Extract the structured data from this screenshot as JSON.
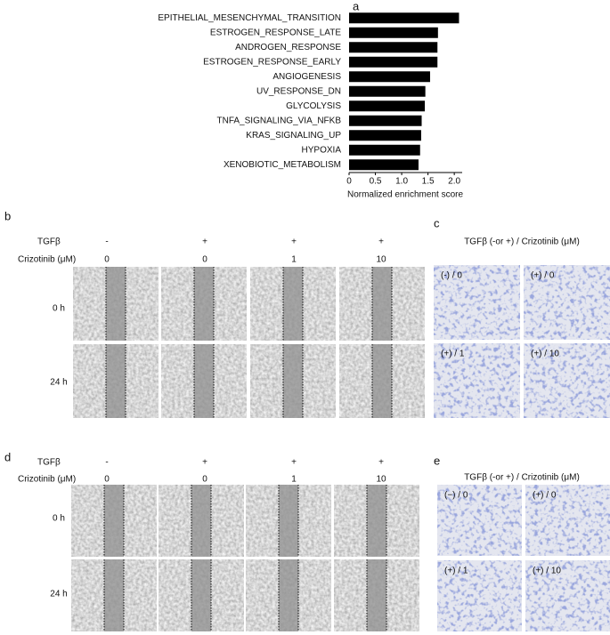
{
  "chart_data": {
    "type": "bar",
    "orientation": "horizontal",
    "categories": [
      "EPITHELIAL_MESENCHYMAL_TRANSITION",
      "ESTROGEN_RESPONSE_LATE",
      "ANDROGEN_RESPONSE",
      "ESTROGEN_RESPONSE_EARLY",
      "ANGIOGENESIS",
      "UV_RESPONSE_DN",
      "GLYCOLYSIS",
      "TNFA_SIGNALING_VIA_NFKB",
      "KRAS_SIGNALING_UP",
      "HYPOXIA",
      "XENOBIOTIC_METABOLISM"
    ],
    "values": [
      2.09,
      1.69,
      1.68,
      1.68,
      1.54,
      1.45,
      1.44,
      1.38,
      1.37,
      1.35,
      1.32
    ],
    "color": "#000000",
    "x_label": "Normalized enrichment score",
    "xlim": [
      0,
      2.15
    ],
    "xticks": [
      0,
      0.5,
      {
        "value": 1,
        "label": "1.0"
      },
      1.5,
      {
        "value": 2,
        "label": "2.0"
      }
    ]
  },
  "panel_labels": [
    "a",
    "b",
    "c",
    "d",
    "e"
  ],
  "wound_healing": [
    {
      "tgfb_label": "TGFβ",
      "crizotinib_label": "Crizotinib (μM)",
      "tgfb": [
        "-",
        "+",
        "+",
        "+"
      ],
      "crizotinib": [
        "0",
        "0",
        "1",
        "10"
      ],
      "times": [
        "0 h",
        "24 h"
      ]
    },
    {
      "tgfb_label": "TGFβ",
      "crizotinib_label": "Crizotinib (μM)",
      "tgfb": [
        "-",
        "+",
        "+",
        "+"
      ],
      "crizotinib": [
        "0",
        "0",
        "1",
        "10"
      ],
      "times": [
        "0 h",
        "24 h"
      ]
    }
  ],
  "transwell": [
    {
      "title": "TGFβ (-or +) / Crizotinib (μM)",
      "labels": [
        "(-) / 0",
        "(+) / 0",
        "(+) / 1",
        "(+) / 10"
      ]
    },
    {
      "title": "TGFβ (-or +) / Crizotinib (μM)",
      "labels": [
        "(−) / 0",
        "(+) / 0",
        "(+) / 1",
        "(+) / 10"
      ]
    }
  ]
}
